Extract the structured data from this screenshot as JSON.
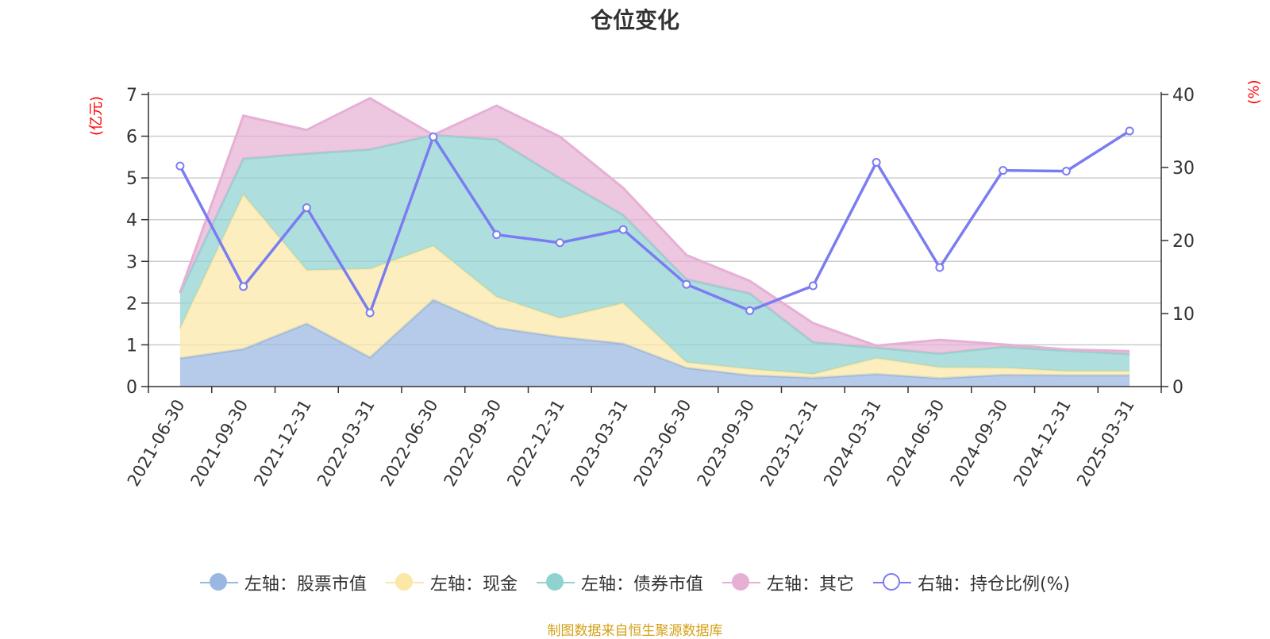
{
  "title": "仓位变化",
  "unit_left": "(亿元)",
  "unit_right": "(%)",
  "source": "制图数据来自恒生聚源数据库",
  "colors": {
    "stock": "#9ab7e2",
    "cash": "#fbe7a6",
    "bond": "#8fd3d1",
    "other": "#e6b0d4",
    "ratio": "#7b7cf2"
  },
  "legend": [
    {
      "label": "左轴：股票市值",
      "icon": "filled-circle"
    },
    {
      "label": "左轴：现金",
      "icon": "filled-circle"
    },
    {
      "label": "左轴：债券市值",
      "icon": "filled-circle"
    },
    {
      "label": "左轴：其它",
      "icon": "filled-circle"
    },
    {
      "label": "右轴：持仓比例(%)",
      "icon": "hollow-circle"
    }
  ],
  "chart_data": {
    "type": "area",
    "categories": [
      "2021-06-30",
      "2021-09-30",
      "2021-12-31",
      "2022-03-31",
      "2022-06-30",
      "2022-09-30",
      "2022-12-31",
      "2023-03-31",
      "2023-06-30",
      "2023-09-30",
      "2023-12-31",
      "2024-03-31",
      "2024-06-30",
      "2024-09-30",
      "2024-12-31",
      "2025-03-31"
    ],
    "stacked": true,
    "y_left": {
      "label": "(亿元)",
      "ylim": [
        0,
        7
      ],
      "ticks": [
        0,
        1,
        2,
        3,
        4,
        5,
        6,
        7
      ]
    },
    "y_right": {
      "label": "(%)",
      "ylim": [
        0,
        40
      ],
      "ticks": [
        0,
        10,
        20,
        30,
        40
      ]
    },
    "grid": true,
    "legend_position": "bottom",
    "series": [
      {
        "name": "左轴：股票市值",
        "axis": "left",
        "type": "area",
        "values": [
          0.68,
          0.9,
          1.51,
          0.7,
          2.08,
          1.41,
          1.19,
          1.03,
          0.45,
          0.27,
          0.21,
          0.3,
          0.2,
          0.28,
          0.27,
          0.27
        ]
      },
      {
        "name": "左轴：现金",
        "axis": "left",
        "type": "area",
        "values": [
          0.71,
          3.7,
          1.28,
          2.12,
          1.29,
          0.74,
          0.45,
          0.97,
          0.13,
          0.15,
          0.09,
          0.38,
          0.26,
          0.17,
          0.1,
          0.1
        ]
      },
      {
        "name": "左轴：债券市值",
        "axis": "left",
        "type": "area",
        "values": [
          0.85,
          0.86,
          2.79,
          2.86,
          2.66,
          3.77,
          3.35,
          2.11,
          1.99,
          1.81,
          0.76,
          0.25,
          0.33,
          0.5,
          0.49,
          0.41
        ]
      },
      {
        "name": "左轴：其它",
        "axis": "left",
        "type": "area",
        "values": [
          0.02,
          1.03,
          0.57,
          1.23,
          0.0,
          0.81,
          1.0,
          0.65,
          0.58,
          0.3,
          0.46,
          0.05,
          0.33,
          0.06,
          0.03,
          0.07
        ]
      },
      {
        "name": "右轴：持仓比例(%)",
        "axis": "right",
        "type": "line",
        "values": [
          30.2,
          13.7,
          24.5,
          10.1,
          34.2,
          20.8,
          19.7,
          21.5,
          14.0,
          10.4,
          13.8,
          30.7,
          16.3,
          29.6,
          29.5,
          35.0
        ]
      }
    ]
  }
}
